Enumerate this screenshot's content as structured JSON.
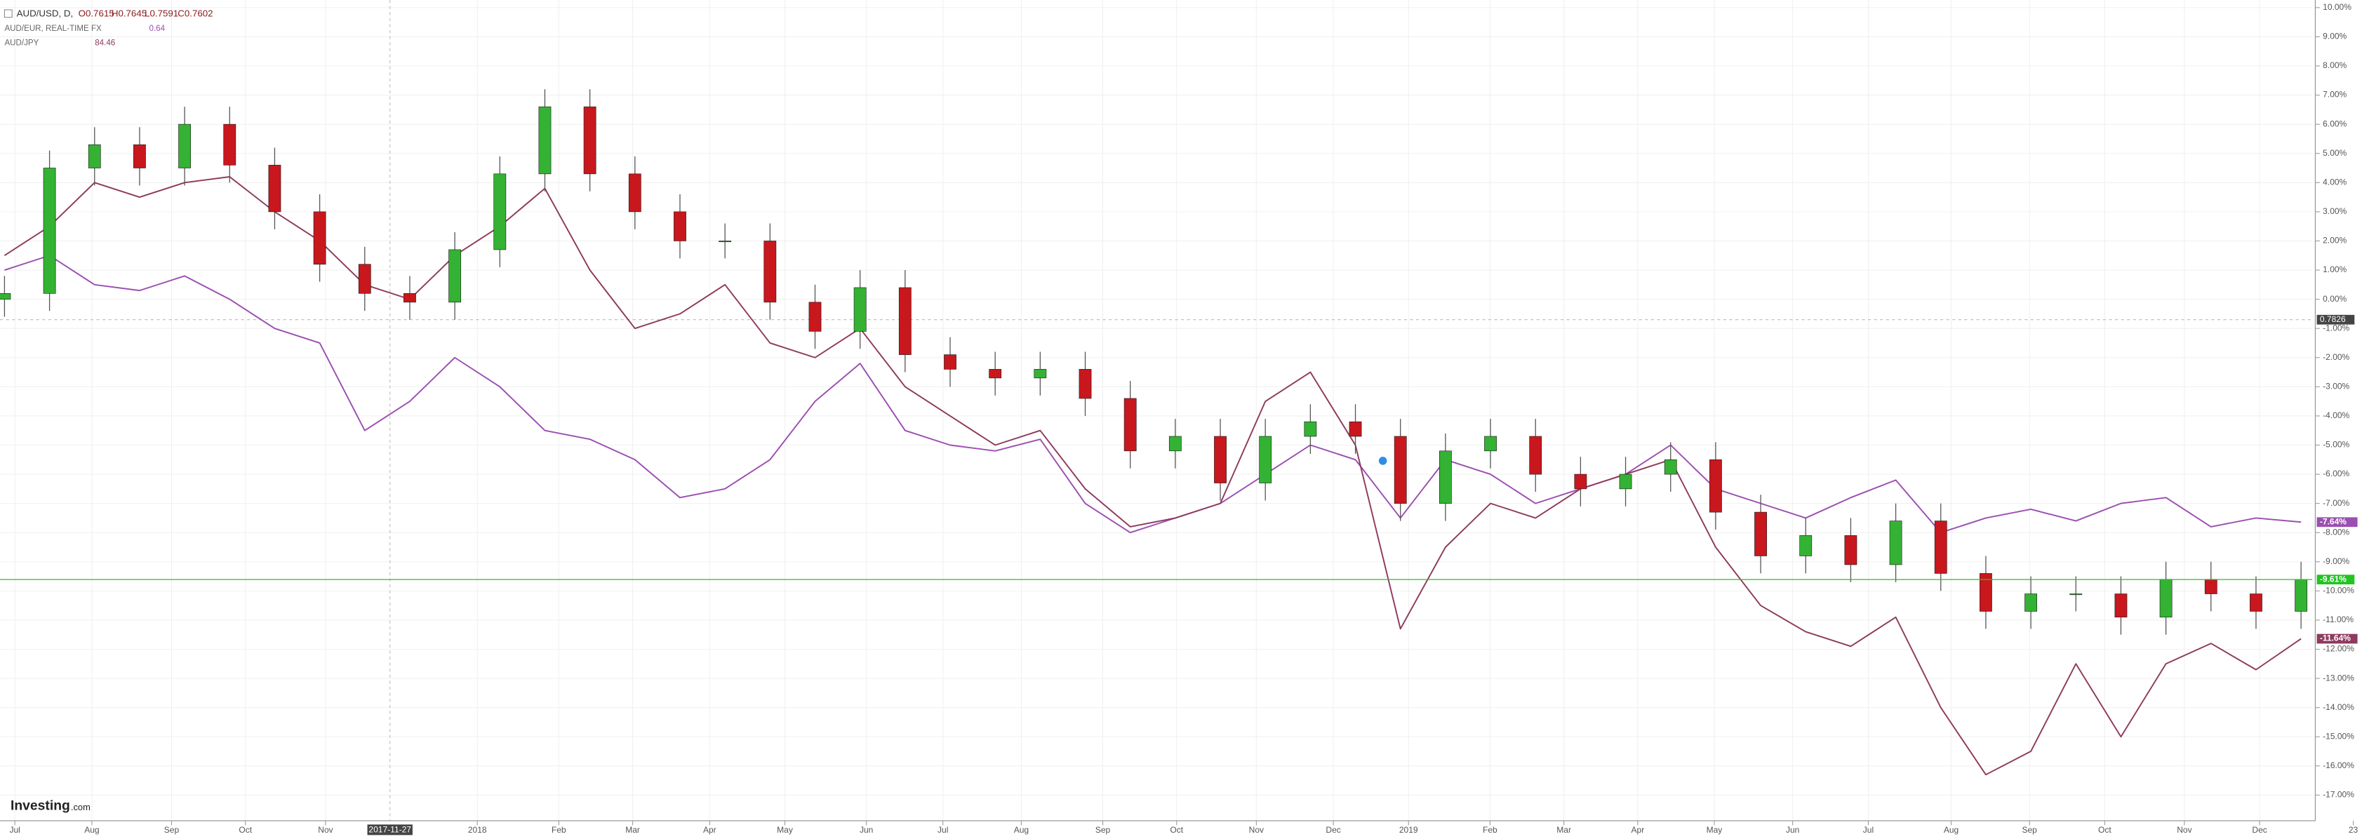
{
  "chart_data": {
    "type": "candlestick",
    "header": {
      "ohlc_labels": [
        "O0.7615",
        "H0.7645",
        "L0.7591",
        "C0.7602"
      ]
    },
    "series": [
      {
        "name": "AUD/USD, D,",
        "type": "candlestick",
        "up_color": "#34b233",
        "down_color": "#c8171d",
        "open": [
          0.0,
          0.2,
          4.5,
          5.3,
          4.5,
          6.0,
          4.6,
          3.0,
          1.2,
          0.2,
          -0.1,
          1.7,
          4.3,
          6.6,
          4.3,
          3.0,
          2.0,
          2.0,
          -0.1,
          -1.1,
          0.4,
          -1.9,
          -2.4,
          -2.7,
          -2.4,
          -3.4,
          -5.2,
          -4.7,
          -6.3,
          -4.7,
          -4.2,
          -4.7,
          -7.0,
          -5.2,
          -4.7,
          -6.0,
          -6.5,
          -6.0,
          -5.5,
          -7.3,
          -8.8,
          -8.1,
          -9.1,
          -7.6,
          -9.4,
          -10.7,
          -10.1,
          -10.1,
          -10.9,
          -9.6,
          -10.1,
          -10.7
        ],
        "high": [
          0.8,
          5.1,
          5.9,
          5.9,
          6.6,
          6.6,
          5.2,
          3.6,
          1.8,
          0.8,
          2.3,
          4.9,
          7.2,
          7.2,
          4.9,
          3.6,
          2.6,
          2.6,
          0.5,
          1.0,
          1.0,
          -1.3,
          -1.8,
          -1.8,
          -1.8,
          -2.8,
          -4.1,
          -4.1,
          -4.1,
          -3.6,
          -3.6,
          -4.1,
          -4.6,
          -4.1,
          -4.1,
          -5.4,
          -5.4,
          -4.9,
          -4.9,
          -6.7,
          -7.5,
          -7.5,
          -7.0,
          -7.0,
          -8.8,
          -9.5,
          -9.5,
          -9.5,
          -9.0,
          -9.0,
          -9.5,
          -9.0
        ],
        "low": [
          -0.6,
          -0.4,
          3.9,
          3.9,
          3.9,
          4.0,
          2.4,
          0.6,
          -0.4,
          -0.7,
          -0.7,
          1.1,
          3.7,
          3.7,
          2.4,
          1.4,
          1.4,
          -0.7,
          -1.7,
          -1.7,
          -2.5,
          -3.0,
          -3.3,
          -3.3,
          -4.0,
          -5.8,
          -5.8,
          -6.9,
          -6.9,
          -5.3,
          -5.3,
          -7.6,
          -7.6,
          -5.8,
          -6.6,
          -7.1,
          -7.1,
          -6.6,
          -7.9,
          -9.4,
          -9.4,
          -9.7,
          -9.7,
          -10.0,
          -11.3,
          -11.3,
          -10.7,
          -11.5,
          -11.5,
          -10.7,
          -11.3,
          -11.3
        ],
        "close": [
          0.2,
          4.5,
          5.3,
          4.5,
          6.0,
          4.6,
          3.0,
          1.2,
          0.2,
          -0.1,
          1.7,
          4.3,
          6.6,
          4.3,
          3.0,
          2.0,
          2.0,
          -0.1,
          -1.1,
          0.4,
          -1.9,
          -2.4,
          -2.7,
          -2.4,
          -3.4,
          -5.2,
          -4.7,
          -6.3,
          -4.7,
          -4.2,
          -4.7,
          -7.0,
          -5.2,
          -4.7,
          -6.0,
          -6.5,
          -6.0,
          -5.5,
          -7.3,
          -8.8,
          -8.1,
          -9.1,
          -7.6,
          -9.4,
          -10.7,
          -10.1,
          -10.1,
          -10.9,
          -9.6,
          -10.1,
          -10.7,
          -9.61
        ],
        "last_label": "-9.61%",
        "last_color": "#22c322"
      },
      {
        "name": "AUD/EUR, REAL-TIME FX",
        "type": "line",
        "color": "#9b4fb0",
        "legend_value": "0.64",
        "values": [
          1.0,
          1.5,
          0.5,
          0.3,
          0.8,
          0.0,
          -1.0,
          -1.5,
          -4.5,
          -3.5,
          -2.0,
          -3.0,
          -4.5,
          -4.8,
          -5.5,
          -6.8,
          -6.5,
          -5.5,
          -3.5,
          -2.2,
          -4.5,
          -5.0,
          -5.2,
          -4.8,
          -7.0,
          -8.0,
          -7.5,
          -7.0,
          -6.0,
          -5.0,
          -5.5,
          -7.5,
          -5.5,
          -6.0,
          -7.0,
          -6.5,
          -6.0,
          -5.0,
          -6.5,
          -7.0,
          -7.5,
          -6.8,
          -6.2,
          -8.0,
          -7.5,
          -7.2,
          -7.6,
          -7.0,
          -6.8,
          -7.8,
          -7.5,
          -7.64
        ],
        "last_label": "-7.64%"
      },
      {
        "name": "AUD/JPY",
        "type": "line",
        "color": "#8e3a5e",
        "legend_value": "84.46",
        "values": [
          1.5,
          2.5,
          4.0,
          3.5,
          4.0,
          4.2,
          3.0,
          2.0,
          0.5,
          0.0,
          1.5,
          2.5,
          3.8,
          1.0,
          -1.0,
          -0.5,
          0.5,
          -1.5,
          -2.0,
          -1.0,
          -3.0,
          -4.0,
          -5.0,
          -4.5,
          -6.5,
          -7.8,
          -7.5,
          -7.0,
          -3.5,
          -2.5,
          -5.0,
          -11.3,
          -8.5,
          -7.0,
          -7.5,
          -6.5,
          -6.0,
          -5.5,
          -8.5,
          -10.5,
          -11.4,
          -11.9,
          -10.9,
          -14.0,
          -16.3,
          -15.5,
          -12.5,
          -15.0,
          -12.5,
          -11.8,
          -12.7,
          -11.64
        ],
        "last_label": "-11.64%"
      }
    ],
    "xlim": [
      -0.1,
      51.25
    ],
    "xticks": [
      {
        "value": 0.23,
        "label": "Jul"
      },
      {
        "value": 1.94,
        "label": "Aug"
      },
      {
        "value": 3.71,
        "label": "Sep"
      },
      {
        "value": 5.35,
        "label": "Oct"
      },
      {
        "value": 7.13,
        "label": "Nov"
      },
      {
        "value": 10.5,
        "label": "2018"
      },
      {
        "value": 12.31,
        "label": "Feb"
      },
      {
        "value": 13.95,
        "label": "Mar"
      },
      {
        "value": 15.66,
        "label": "Apr"
      },
      {
        "value": 17.33,
        "label": "May"
      },
      {
        "value": 19.14,
        "label": "Jun"
      },
      {
        "value": 20.84,
        "label": "Jul"
      },
      {
        "value": 22.58,
        "label": "Aug"
      },
      {
        "value": 24.39,
        "label": "Sep"
      },
      {
        "value": 26.03,
        "label": "Oct"
      },
      {
        "value": 27.8,
        "label": "Nov"
      },
      {
        "value": 29.51,
        "label": "Dec"
      },
      {
        "value": 31.18,
        "label": "2019"
      },
      {
        "value": 32.99,
        "label": "Feb"
      },
      {
        "value": 34.63,
        "label": "Mar"
      },
      {
        "value": 36.27,
        "label": "Apr"
      },
      {
        "value": 37.97,
        "label": "May"
      },
      {
        "value": 39.71,
        "label": "Jun"
      },
      {
        "value": 41.39,
        "label": "Jul"
      },
      {
        "value": 43.23,
        "label": "Aug"
      },
      {
        "value": 44.97,
        "label": "Sep"
      },
      {
        "value": 46.64,
        "label": "Oct"
      },
      {
        "value": 48.41,
        "label": "Nov"
      },
      {
        "value": 50.08,
        "label": "Dec"
      },
      {
        "value": 52.16,
        "label": "23"
      }
    ],
    "ylim": [
      -17.88,
      10.26
    ],
    "yticks": [
      {
        "value": 10,
        "label": "10.00%"
      },
      {
        "value": 9,
        "label": "9.00%"
      },
      {
        "value": 8,
        "label": "8.00%"
      },
      {
        "value": 7,
        "label": "7.00%"
      },
      {
        "value": 6,
        "label": "6.00%"
      },
      {
        "value": 5,
        "label": "5.00%"
      },
      {
        "value": 4,
        "label": "4.00%"
      },
      {
        "value": 3,
        "label": "3.00%"
      },
      {
        "value": 2,
        "label": "2.00%"
      },
      {
        "value": 1,
        "label": "1.00%"
      },
      {
        "value": 0,
        "label": "0.00%"
      },
      {
        "value": -1,
        "label": "-1.00%"
      },
      {
        "value": -2,
        "label": "-2.00%"
      },
      {
        "value": -3,
        "label": "-3.00%"
      },
      {
        "value": -4,
        "label": "-4.00%"
      },
      {
        "value": -5,
        "label": "-5.00%"
      },
      {
        "value": -6,
        "label": "-6.00%"
      },
      {
        "value": -7,
        "label": "-7.00%"
      },
      {
        "value": -8,
        "label": "-8.00%"
      },
      {
        "value": -9,
        "label": "-9.00%"
      },
      {
        "value": -10,
        "label": "-10.00%"
      },
      {
        "value": -11,
        "label": "-11.00%"
      },
      {
        "value": -12,
        "label": "-12.00%"
      },
      {
        "value": -13,
        "label": "-13.00%"
      },
      {
        "value": -14,
        "label": "-14.00%"
      },
      {
        "value": -15,
        "label": "-15.00%"
      },
      {
        "value": -16,
        "label": "-16.00%"
      },
      {
        "value": -17,
        "label": "-17.00%"
      }
    ],
    "grid": true,
    "crosshair": {
      "x": 8.56,
      "y": -0.7,
      "x_label": "2017-11-27",
      "y_label": "0.7826"
    },
    "logo": {
      "main": "Investing",
      "suffix": ".com"
    }
  }
}
